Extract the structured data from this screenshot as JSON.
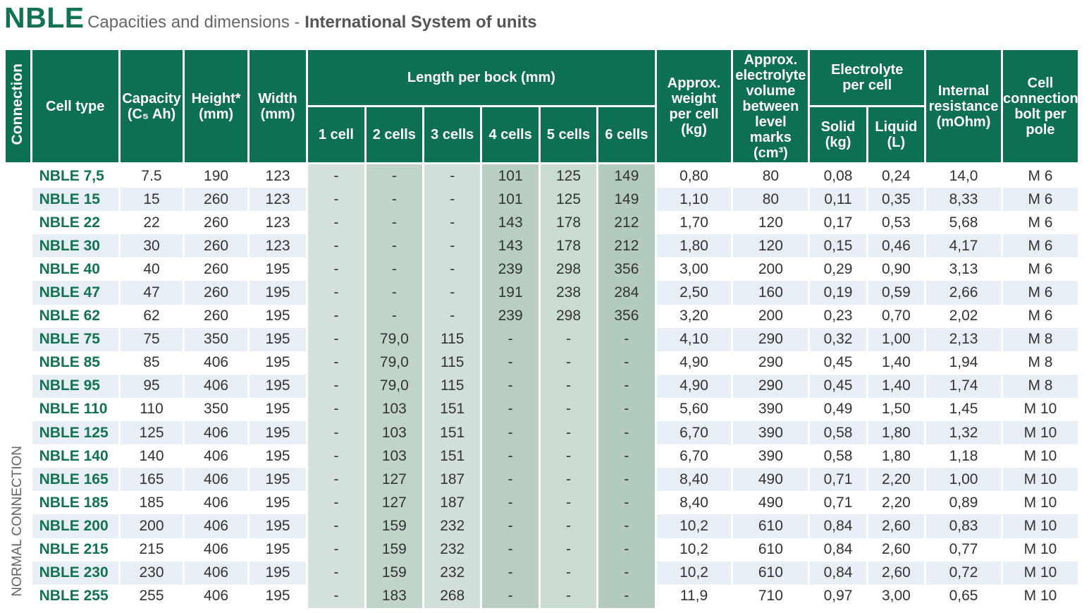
{
  "title": {
    "main": "NBLE",
    "sub": "Capacities and dimensions - ",
    "sub_bold": "International System of units"
  },
  "headers": {
    "connection": "Connection",
    "cell_type": "Cell type",
    "capacity": [
      "Capacity",
      "(C₅ Ah)"
    ],
    "height": [
      "Height*",
      "(mm)"
    ],
    "width": [
      "Width",
      "(mm)"
    ],
    "length_group": "Length per bock (mm)",
    "lengths": [
      "1 cell",
      "2 cells",
      "3 cells",
      "4 cells",
      "5 cells",
      "6 cells"
    ],
    "weight": [
      "Approx.",
      "weight",
      "per cell",
      "(kg)"
    ],
    "volume": [
      "Approx.",
      "electrolyte",
      "volume",
      "between",
      "level marks",
      "(cm³)"
    ],
    "electrolyte_group": [
      "Electrolyte",
      "per cell"
    ],
    "solid": [
      "Solid",
      "(kg)"
    ],
    "liquid": [
      "Liquid",
      "(L)"
    ],
    "resistance": [
      "Internal",
      "resistance",
      "(mOhm)"
    ],
    "bolt": [
      "Cell",
      "connection",
      "bolt per",
      "pole"
    ]
  },
  "connection_label": "NORMAL CONNECTION",
  "rows": [
    [
      "NBLE 7,5",
      "7.5",
      "190",
      "123",
      "-",
      "-",
      "-",
      "101",
      "125",
      "149",
      "0,80",
      "80",
      "0,08",
      "0,24",
      "14,0",
      "M 6"
    ],
    [
      "NBLE 15",
      "15",
      "260",
      "123",
      "-",
      "-",
      "-",
      "101",
      "125",
      "149",
      "1,10",
      "80",
      "0,11",
      "0,35",
      "8,33",
      "M 6"
    ],
    [
      "NBLE 22",
      "22",
      "260",
      "123",
      "-",
      "-",
      "-",
      "143",
      "178",
      "212",
      "1,70",
      "120",
      "0,17",
      "0,53",
      "5,68",
      "M 6"
    ],
    [
      "NBLE 30",
      "30",
      "260",
      "123",
      "-",
      "-",
      "-",
      "143",
      "178",
      "212",
      "1,80",
      "120",
      "0,15",
      "0,46",
      "4,17",
      "M 6"
    ],
    [
      "NBLE 40",
      "40",
      "260",
      "195",
      "-",
      "-",
      "-",
      "239",
      "298",
      "356",
      "3,00",
      "200",
      "0,29",
      "0,90",
      "3,13",
      "M 6"
    ],
    [
      "NBLE 47",
      "47",
      "260",
      "195",
      "-",
      "-",
      "-",
      "191",
      "238",
      "284",
      "2,50",
      "160",
      "0,19",
      "0,59",
      "2,66",
      "M 6"
    ],
    [
      "NBLE 62",
      "62",
      "260",
      "195",
      "-",
      "-",
      "-",
      "239",
      "298",
      "356",
      "3,20",
      "200",
      "0,23",
      "0,70",
      "2,02",
      "M 6"
    ],
    [
      "NBLE 75",
      "75",
      "350",
      "195",
      "-",
      "79,0",
      "115",
      "-",
      "-",
      "-",
      "4,10",
      "290",
      "0,32",
      "1,00",
      "2,13",
      "M 8"
    ],
    [
      "NBLE 85",
      "85",
      "406",
      "195",
      "-",
      "79,0",
      "115",
      "-",
      "-",
      "-",
      "4,90",
      "290",
      "0,45",
      "1,40",
      "1,94",
      "M 8"
    ],
    [
      "NBLE 95",
      "95",
      "406",
      "195",
      "-",
      "79,0",
      "115",
      "-",
      "-",
      "-",
      "4,90",
      "290",
      "0,45",
      "1,40",
      "1,74",
      "M 8"
    ],
    [
      "NBLE 110",
      "110",
      "350",
      "195",
      "-",
      "103",
      "151",
      "-",
      "-",
      "-",
      "5,60",
      "390",
      "0,49",
      "1,50",
      "1,45",
      "M 10"
    ],
    [
      "NBLE 125",
      "125",
      "406",
      "195",
      "-",
      "103",
      "151",
      "-",
      "-",
      "-",
      "6,70",
      "390",
      "0,58",
      "1,80",
      "1,32",
      "M 10"
    ],
    [
      "NBLE 140",
      "140",
      "406",
      "195",
      "-",
      "103",
      "151",
      "-",
      "-",
      "-",
      "6,70",
      "390",
      "0,58",
      "1,80",
      "1,18",
      "M 10"
    ],
    [
      "NBLE 165",
      "165",
      "406",
      "195",
      "-",
      "127",
      "187",
      "-",
      "-",
      "-",
      "8,40",
      "490",
      "0,71",
      "2,20",
      "1,00",
      "M 10"
    ],
    [
      "NBLE 185",
      "185",
      "406",
      "195",
      "-",
      "127",
      "187",
      "-",
      "-",
      "-",
      "8,40",
      "490",
      "0,71",
      "2,20",
      "0,89",
      "M 10"
    ],
    [
      "NBLE 200",
      "200",
      "406",
      "195",
      "-",
      "159",
      "232",
      "-",
      "-",
      "-",
      "10,2",
      "610",
      "0,84",
      "2,60",
      "0,83",
      "M 10"
    ],
    [
      "NBLE 215",
      "215",
      "406",
      "195",
      "-",
      "159",
      "232",
      "-",
      "-",
      "-",
      "10,2",
      "610",
      "0,84",
      "2,60",
      "0,77",
      "M 10"
    ],
    [
      "NBLE 230",
      "230",
      "406",
      "195",
      "-",
      "159",
      "232",
      "-",
      "-",
      "-",
      "10,2",
      "610",
      "0,84",
      "2,60",
      "0,72",
      "M 10"
    ],
    [
      "NBLE 255",
      "255",
      "406",
      "195",
      "-",
      "183",
      "268",
      "-",
      "-",
      "-",
      "11,9",
      "710",
      "0,97",
      "3,00",
      "0,65",
      "M 10"
    ]
  ]
}
